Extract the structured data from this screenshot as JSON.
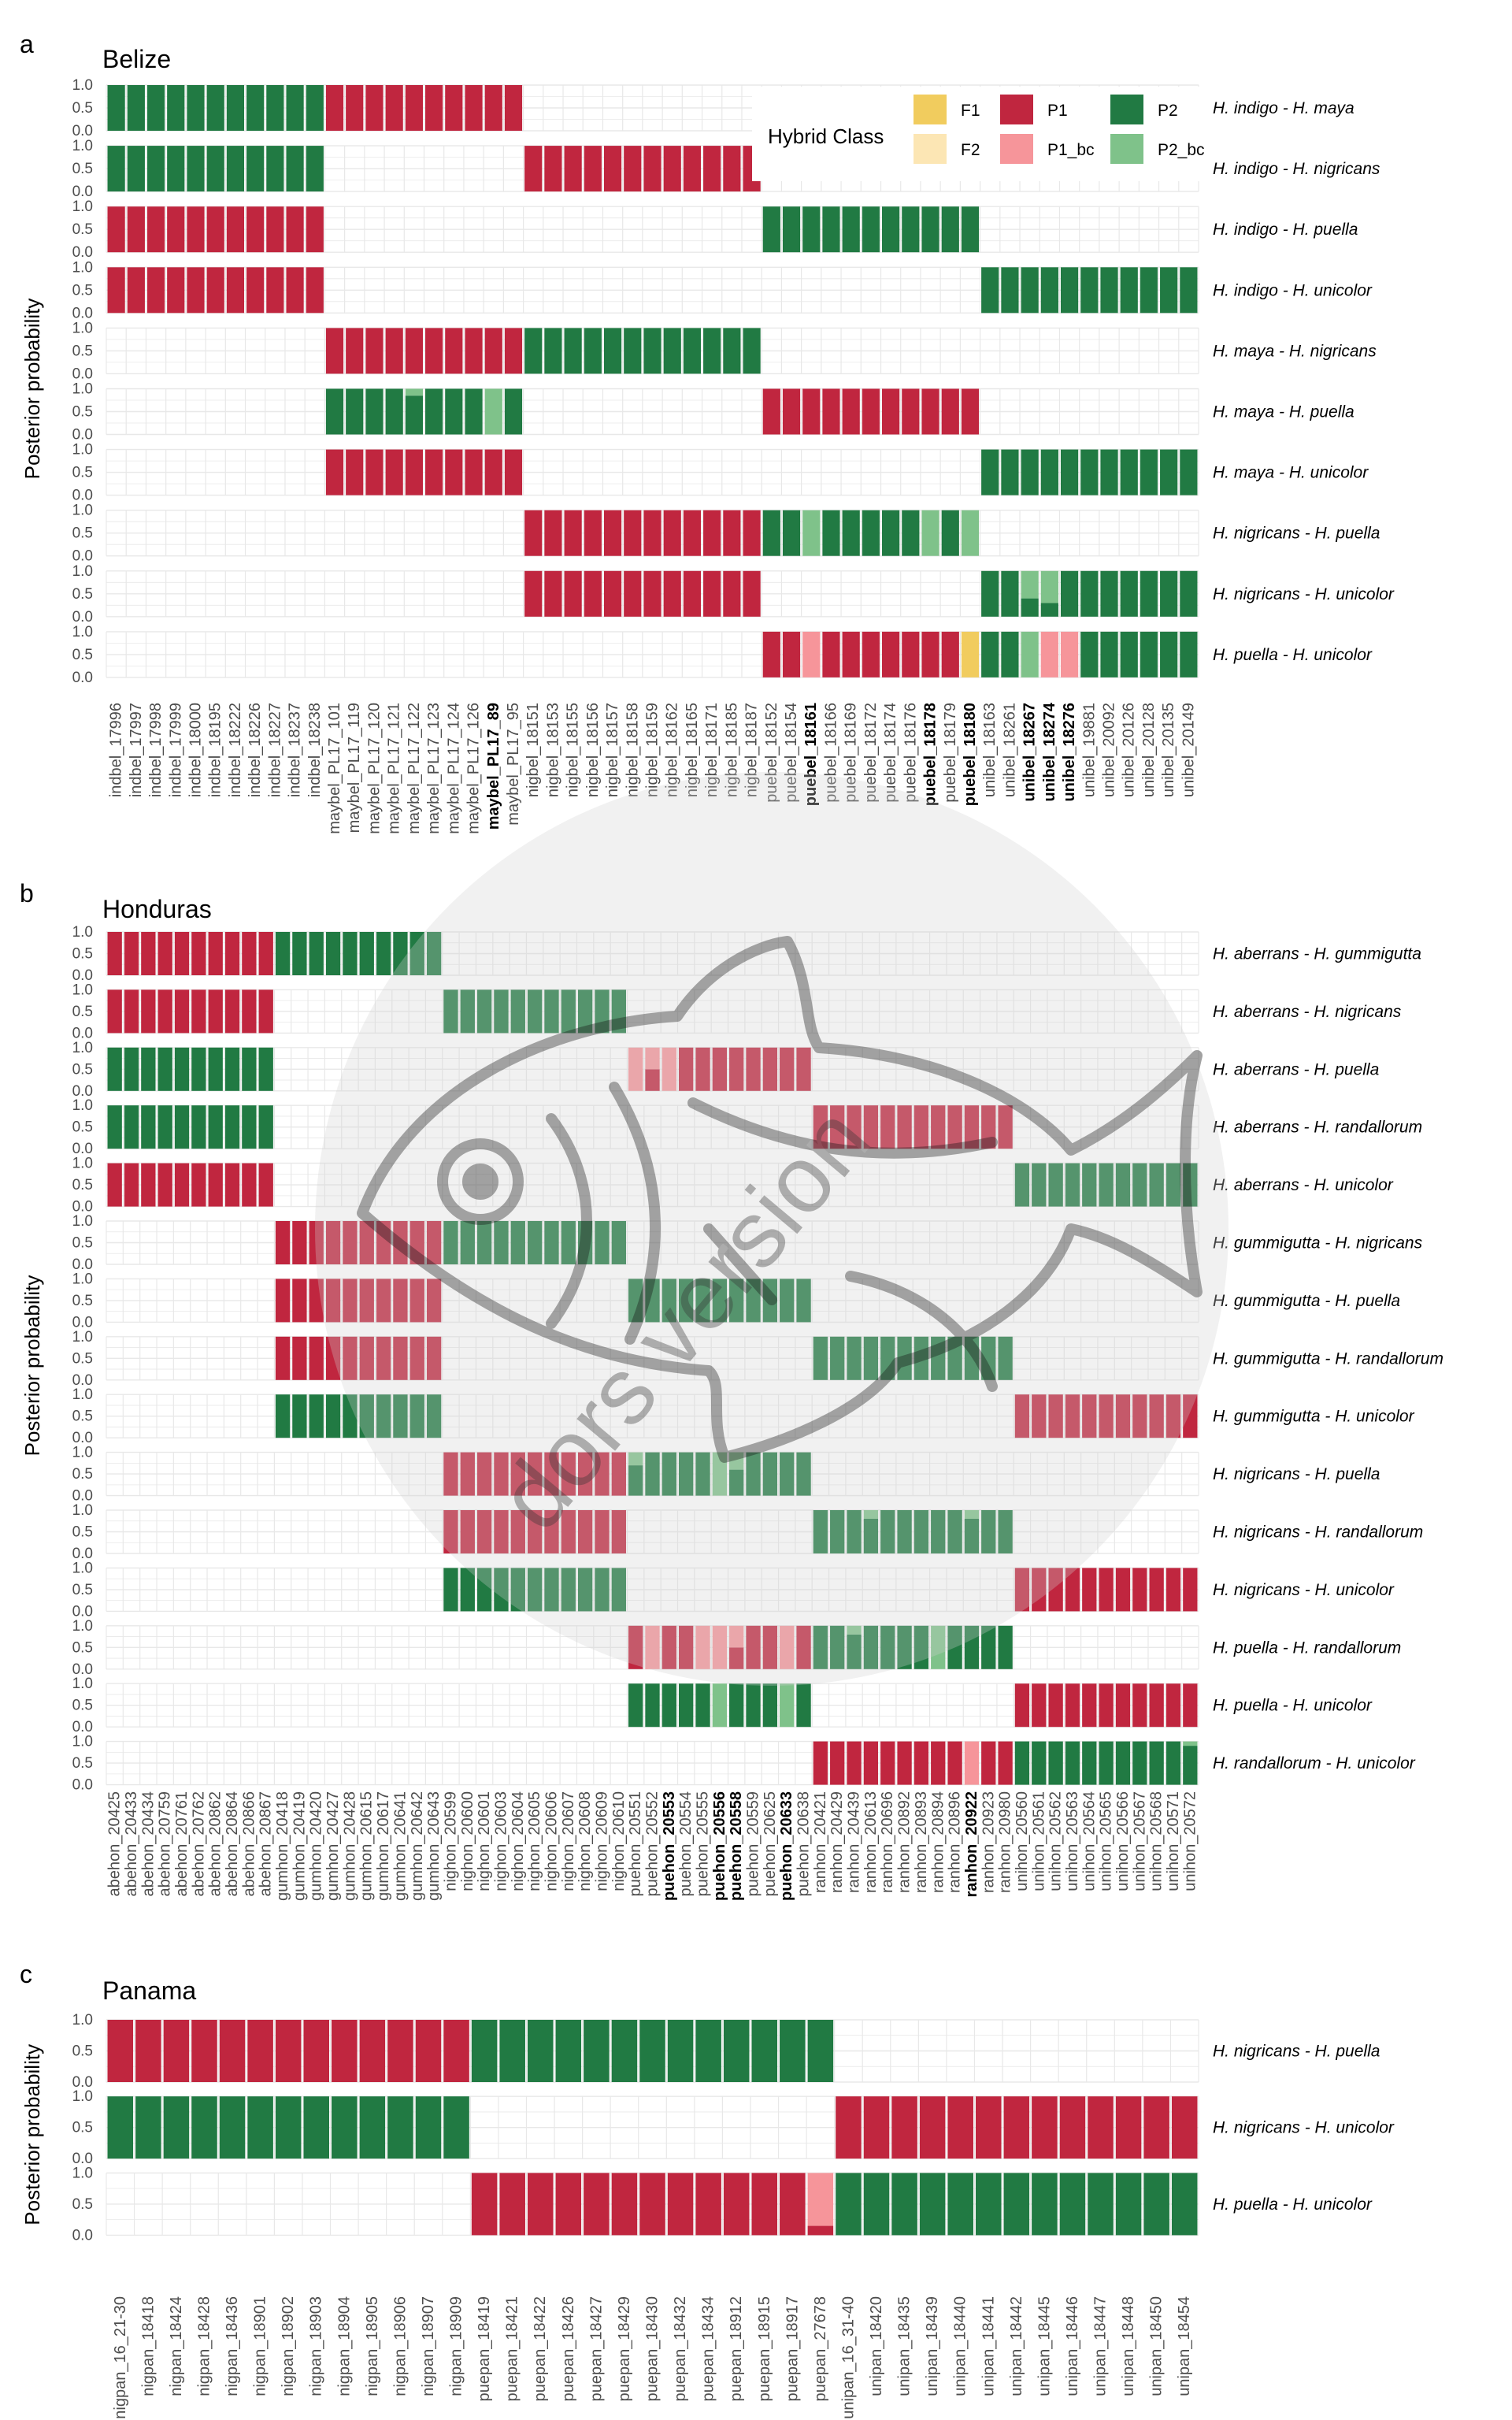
{
  "colors": {
    "F1": "#F1CC5E",
    "F2": "#FCE6B4",
    "P1": "#C0263F",
    "P1_bc": "#F6959A",
    "P2": "#217A43",
    "P2_bc": "#7FC28A",
    "grid": "#E8E8E8",
    "watermark": "#CFCFCF"
  },
  "watermark": {
    "text": "dors version",
    "icon": "fish-icon"
  },
  "legend": {
    "title": "Hybrid Class",
    "items": [
      {
        "key": "F1",
        "label": "F1"
      },
      {
        "key": "F2",
        "label": "F2"
      },
      {
        "key": "P1",
        "label": "P1"
      },
      {
        "key": "P1_bc",
        "label": "P1_bc"
      },
      {
        "key": "P2",
        "label": "P2"
      },
      {
        "key": "P2_bc",
        "label": "P2_bc"
      }
    ]
  },
  "chart_data": [
    {
      "type": "bar",
      "panel": "a",
      "title": "Belize",
      "ylabel": "Posterior probability",
      "yticks": [
        "0.0",
        "0.5",
        "1.0"
      ],
      "ylim": [
        0,
        1
      ],
      "samples": [
        "indbel_17996",
        "indbel_17997",
        "indbel_17998",
        "indbel_17999",
        "indbel_18000",
        "indbel_18195",
        "indbel_18222",
        "indbel_18226",
        "indbel_18227",
        "indbel_18237",
        "indbel_18238",
        "maybel_PL17_101",
        "maybel_PL17_119",
        "maybel_PL17_120",
        "maybel_PL17_121",
        "maybel_PL17_122",
        "maybel_PL17_123",
        "maybel_PL17_124",
        "maybel_PL17_126",
        "maybel_PL17_89",
        "maybel_PL17_95",
        "nigbel_18151",
        "nigbel_18153",
        "nigbel_18155",
        "nigbel_18156",
        "nigbel_18157",
        "nigbel_18158",
        "nigbel_18159",
        "nigbel_18162",
        "nigbel_18165",
        "nigbel_18171",
        "nigbel_18185",
        "nigbel_18187",
        "puebel_18152",
        "puebel_18154",
        "puebel_18161",
        "puebel_18166",
        "puebel_18169",
        "puebel_18172",
        "puebel_18174",
        "puebel_18176",
        "puebel_18178",
        "puebel_18179",
        "puebel_18180",
        "unibel_18163",
        "unibel_18261",
        "unibel_18267",
        "unibel_18274",
        "unibel_18276",
        "unibel_19881",
        "unibel_20092",
        "unibel_20126",
        "unibel_20128",
        "unibel_20135",
        "unibel_20149"
      ],
      "bold_samples": [
        "maybel_PL17_89",
        "puebel_18161",
        "puebel_18178",
        "puebel_18180",
        "unibel_18267",
        "unibel_18274",
        "unibel_18276"
      ],
      "series": [
        {
          "name": "H. indigo -  H. maya",
          "rows": [
            [
              0,
              11,
              "P2"
            ],
            [
              11,
              21,
              "P1"
            ]
          ]
        },
        {
          "name": "H. indigo -  H. nigricans",
          "rows": [
            [
              0,
              11,
              "P2"
            ],
            [
              21,
              33,
              "P1"
            ]
          ]
        },
        {
          "name": "H. indigo -  H. puella",
          "rows": [
            [
              0,
              11,
              "P1"
            ],
            [
              33,
              44,
              "P2"
            ]
          ]
        },
        {
          "name": "H. indigo -  H. unicolor",
          "rows": [
            [
              0,
              11,
              "P1"
            ],
            [
              44,
              55,
              "P2"
            ]
          ]
        },
        {
          "name": "H. maya -  H. nigricans",
          "rows": [
            [
              11,
              21,
              "P1"
            ],
            [
              21,
              33,
              "P2"
            ]
          ]
        },
        {
          "name": "H. maya -  H. puella",
          "rows": [
            [
              11,
              21,
              "P2"
            ],
            [
              33,
              44,
              "P1"
            ]
          ],
          "mix": [
            [
              15,
              "P2",
              0.85,
              "P2_bc",
              0.15
            ],
            [
              19,
              "P2_bc",
              1
            ]
          ]
        },
        {
          "name": "H. maya -  H. unicolor",
          "rows": [
            [
              11,
              21,
              "P1"
            ],
            [
              44,
              55,
              "P2"
            ]
          ]
        },
        {
          "name": "H. nigricans -  H. puella",
          "rows": [
            [
              21,
              33,
              "P1"
            ],
            [
              33,
              44,
              "P2"
            ]
          ],
          "mix": [
            [
              35,
              "P2_bc",
              1
            ],
            [
              41,
              "P2_bc",
              1
            ],
            [
              43,
              "P2_bc",
              1
            ]
          ]
        },
        {
          "name": "H. nigricans -  H. unicolor",
          "rows": [
            [
              21,
              33,
              "P1"
            ],
            [
              44,
              55,
              "P2"
            ]
          ],
          "mix": [
            [
              46,
              "P2",
              0.4,
              "P2_bc",
              0.6
            ],
            [
              47,
              "P2",
              0.3,
              "P2_bc",
              0.7
            ]
          ]
        },
        {
          "name": "H. puella -  H. unicolor",
          "rows": [
            [
              33,
              44,
              "P1"
            ],
            [
              44,
              55,
              "P2"
            ]
          ],
          "mix": [
            [
              35,
              "P1_bc",
              1
            ],
            [
              43,
              "F1",
              1
            ],
            [
              46,
              "P2_bc",
              1
            ],
            [
              47,
              "P1_bc",
              1
            ],
            [
              48,
              "P1_bc",
              1
            ]
          ]
        }
      ]
    },
    {
      "type": "bar",
      "panel": "b",
      "title": "Honduras",
      "ylabel": "Posterior probability",
      "yticks": [
        "0.0",
        "0.5",
        "1.0"
      ],
      "ylim": [
        0,
        1
      ],
      "samples": [
        "abehon_20425",
        "abehon_20433",
        "abehon_20434",
        "abehon_20759",
        "abehon_20761",
        "abehon_20762",
        "abehon_20862",
        "abehon_20864",
        "abehon_20866",
        "abehon_20867",
        "gumhon_20418",
        "gumhon_20419",
        "gumhon_20420",
        "gumhon_20427",
        "gumhon_20428",
        "gumhon_20615",
        "gumhon_20617",
        "gumhon_20641",
        "gumhon_20642",
        "gumhon_20643",
        "nighon_20599",
        "nighon_20600",
        "nighon_20601",
        "nighon_20603",
        "nighon_20604",
        "nighon_20605",
        "nighon_20606",
        "nighon_20607",
        "nighon_20608",
        "nighon_20609",
        "nighon_20610",
        "puehon_20551",
        "puehon_20552",
        "puehon_20553",
        "puehon_20554",
        "puehon_20555",
        "puehon_20556",
        "puehon_20558",
        "puehon_20559",
        "puehon_20625",
        "puehon_20633",
        "puehon_20638",
        "ranhon_20421",
        "ranhon_20429",
        "ranhon_20439",
        "ranhon_20613",
        "ranhon_20696",
        "ranhon_20892",
        "ranhon_20893",
        "ranhon_20894",
        "ranhon_20896",
        "ranhon_20922",
        "ranhon_20923",
        "ranhon_20980",
        "unihon_20560",
        "unihon_20561",
        "unihon_20562",
        "unihon_20563",
        "unihon_20564",
        "unihon_20565",
        "unihon_20566",
        "unihon_20567",
        "unihon_20568",
        "unihon_20571",
        "unihon_20572"
      ],
      "bold_samples": [
        "puehon_20553",
        "puehon_20556",
        "puehon_20558",
        "puehon_20633",
        "ranhon_20922"
      ],
      "series": [
        {
          "name": "H. aberrans -  H. gummigutta",
          "rows": [
            [
              0,
              10,
              "P1"
            ],
            [
              10,
              20,
              "P2"
            ]
          ]
        },
        {
          "name": "H. aberrans -  H. nigricans",
          "rows": [
            [
              0,
              10,
              "P1"
            ],
            [
              20,
              31,
              "P2"
            ]
          ]
        },
        {
          "name": "H. aberrans -  H. puella",
          "rows": [
            [
              0,
              10,
              "P2"
            ],
            [
              31,
              42,
              "P1"
            ]
          ],
          "mix": [
            [
              31,
              "P1_bc",
              1
            ],
            [
              32,
              "P1",
              0.5,
              "P1_bc",
              0.5
            ],
            [
              33,
              "P1_bc",
              1
            ]
          ]
        },
        {
          "name": "H. aberrans -  H. randallorum",
          "rows": [
            [
              0,
              10,
              "P2"
            ],
            [
              42,
              54,
              "P1"
            ]
          ]
        },
        {
          "name": "H. aberrans -  H. unicolor",
          "rows": [
            [
              0,
              10,
              "P1"
            ],
            [
              54,
              65,
              "P2"
            ]
          ]
        },
        {
          "name": "H. gummigutta -  H. nigricans",
          "rows": [
            [
              10,
              20,
              "P1"
            ],
            [
              20,
              31,
              "P2"
            ]
          ]
        },
        {
          "name": "H. gummigutta -  H. puella",
          "rows": [
            [
              10,
              20,
              "P1"
            ],
            [
              31,
              42,
              "P2"
            ]
          ]
        },
        {
          "name": "H. gummigutta -  H. randallorum",
          "rows": [
            [
              10,
              20,
              "P1"
            ],
            [
              42,
              54,
              "P2"
            ]
          ]
        },
        {
          "name": "H. gummigutta -  H. unicolor",
          "rows": [
            [
              10,
              20,
              "P2"
            ],
            [
              54,
              65,
              "P1"
            ]
          ]
        },
        {
          "name": "H. nigricans -  H. puella",
          "rows": [
            [
              20,
              31,
              "P1"
            ],
            [
              31,
              42,
              "P2"
            ]
          ],
          "mix": [
            [
              31,
              "P2",
              0.7,
              "P2_bc",
              0.3
            ],
            [
              36,
              "P2_bc",
              1
            ],
            [
              37,
              "P2",
              0.6,
              "P2_bc",
              0.4
            ]
          ]
        },
        {
          "name": "H. nigricans -  H. randallorum",
          "rows": [
            [
              20,
              31,
              "P1"
            ],
            [
              42,
              54,
              "P2"
            ]
          ],
          "mix": [
            [
              45,
              "P2",
              0.8,
              "P2_bc",
              0.2
            ],
            [
              51,
              "P2",
              0.8,
              "P2_bc",
              0.2
            ]
          ]
        },
        {
          "name": "H. nigricans -  H. unicolor",
          "rows": [
            [
              20,
              31,
              "P2"
            ],
            [
              54,
              65,
              "P1"
            ]
          ]
        },
        {
          "name": "H. puella -  H. randallorum",
          "rows": [
            [
              31,
              42,
              "P1"
            ],
            [
              42,
              54,
              "P2"
            ]
          ],
          "mix": [
            [
              32,
              "P1_bc",
              1
            ],
            [
              35,
              "P1_bc",
              1
            ],
            [
              36,
              "P1_bc",
              1
            ],
            [
              37,
              "P1",
              0.5,
              "P1_bc",
              0.5
            ],
            [
              40,
              "P1_bc",
              1
            ],
            [
              44,
              "P2",
              0.8,
              "P2_bc",
              0.2
            ],
            [
              49,
              "P2_bc",
              1
            ]
          ]
        },
        {
          "name": "H. puella -  H. unicolor",
          "rows": [
            [
              31,
              42,
              "P2"
            ],
            [
              54,
              65,
              "P1"
            ]
          ],
          "mix": [
            [
              36,
              "P2_bc",
              1
            ],
            [
              40,
              "P2_bc",
              1
            ]
          ]
        },
        {
          "name": "H. randallorum -  H. unicolor",
          "rows": [
            [
              42,
              54,
              "P1"
            ],
            [
              54,
              65,
              "P2"
            ]
          ],
          "mix": [
            [
              51,
              "P1_bc",
              1
            ],
            [
              64,
              "P2",
              0.9,
              "P2_bc",
              0.1
            ]
          ]
        }
      ]
    },
    {
      "type": "bar",
      "panel": "c",
      "title": "Panama",
      "ylabel": "Posterior probability",
      "yticks": [
        "0.0",
        "0.5",
        "1.0"
      ],
      "ylim": [
        0,
        1
      ],
      "samples": [
        "nigpan_16_21-30",
        "nigpan_18418",
        "nigpan_18424",
        "nigpan_18428",
        "nigpan_18436",
        "nigpan_18901",
        "nigpan_18902",
        "nigpan_18903",
        "nigpan_18904",
        "nigpan_18905",
        "nigpan_18906",
        "nigpan_18907",
        "nigpan_18909",
        "puepan_18419",
        "puepan_18421",
        "puepan_18422",
        "puepan_18426",
        "puepan_18427",
        "puepan_18429",
        "puepan_18430",
        "puepan_18432",
        "puepan_18434",
        "puepan_18912",
        "puepan_18915",
        "puepan_18917",
        "puepan_27678",
        "unipan_16_31-40",
        "unipan_18420",
        "unipan_18435",
        "unipan_18439",
        "unipan_18440",
        "unipan_18441",
        "unipan_18442",
        "unipan_18445",
        "unipan_18446",
        "unipan_18447",
        "unipan_18448",
        "unipan_18450",
        "unipan_18454"
      ],
      "bold_samples": [],
      "series": [
        {
          "name": "H. nigricans -  H. puella",
          "rows": [
            [
              0,
              13,
              "P1"
            ],
            [
              13,
              26,
              "P2"
            ]
          ]
        },
        {
          "name": "H. nigricans -  H. unicolor",
          "rows": [
            [
              0,
              13,
              "P2"
            ],
            [
              26,
              39,
              "P1"
            ]
          ]
        },
        {
          "name": "H. puella -  H. unicolor",
          "rows": [
            [
              13,
              26,
              "P1"
            ],
            [
              26,
              39,
              "P2"
            ]
          ],
          "mix": [
            [
              25,
              "P1",
              0.15,
              "P1_bc",
              0.85
            ]
          ]
        }
      ]
    }
  ]
}
